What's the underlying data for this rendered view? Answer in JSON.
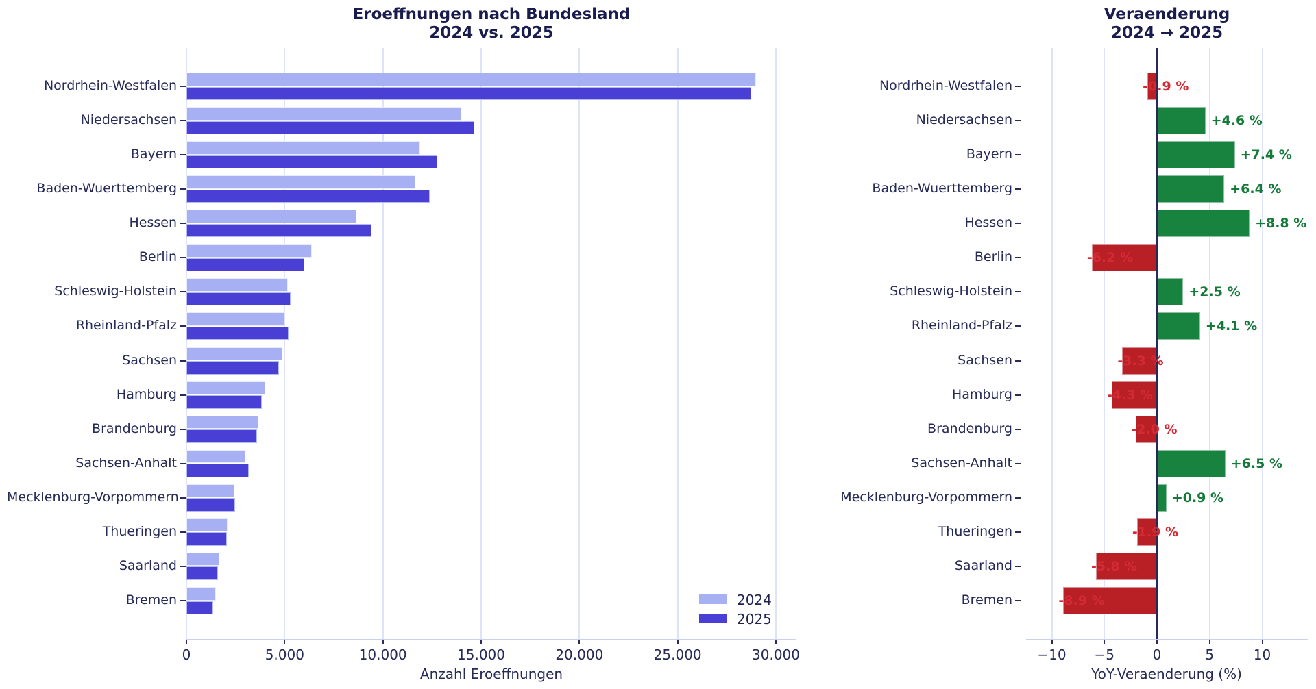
{
  "page": {
    "background": "#ffffff"
  },
  "titles": {
    "left_line1": "Eroeffnungen nach Bundesland",
    "left_line2": "2024 vs. 2025",
    "right_line1": "Veraenderung",
    "right_line2": "2024 → 2025"
  },
  "colors": {
    "bar_2024": "#a6b0f2",
    "bar_2025": "#4a3fd4",
    "bar_positive": "#18833f",
    "bar_negative": "#b92025",
    "label_positive": "#15793a",
    "label_negative": "#d42a33",
    "grid": "#dfe3fa",
    "zero_line": "#262a56",
    "text": "#262a57",
    "title": "#1a1c4e"
  },
  "chart_data": [
    {
      "type": "bar",
      "orientation": "horizontal",
      "title": "Eroeffnungen nach Bundesland\n2024 vs. 2025",
      "xlabel": "Anzahl Eroeffnungen",
      "ylabel": "",
      "grid": true,
      "legend_position": "lower right",
      "xlim": [
        0,
        31000
      ],
      "categories": [
        "Nordrhein-Westfalen",
        "Niedersachsen",
        "Bayern",
        "Baden-Wuerttemberg",
        "Hessen",
        "Berlin",
        "Schleswig-Holstein",
        "Rheinland-Pfalz",
        "Sachsen",
        "Hamburg",
        "Brandenburg",
        "Sachsen-Anhalt",
        "Mecklenburg-Vorpommern",
        "Thueringen",
        "Saarland",
        "Bremen"
      ],
      "series": [
        {
          "name": "2024",
          "color": "#a6b0f2",
          "values": [
            29000,
            14000,
            11900,
            11650,
            8660,
            6400,
            5170,
            5000,
            4880,
            4000,
            3660,
            2990,
            2440,
            2110,
            1690,
            1500
          ]
        },
        {
          "name": "2025",
          "color": "#4a3fd4",
          "values": [
            28740,
            14644,
            12781,
            12396,
            9422,
            6003,
            5299,
            5205,
            4719,
            3828,
            3587,
            3184,
            2462,
            2070,
            1592,
            1367
          ]
        }
      ],
      "xticks": {
        "values": [
          0,
          5000,
          10000,
          15000,
          20000,
          25000,
          30000
        ],
        "labels": [
          "0",
          "5.000",
          "10.000",
          "15.000",
          "20.000",
          "25.000",
          "30.000"
        ]
      }
    },
    {
      "type": "bar",
      "orientation": "horizontal",
      "title": "Veraenderung\n2024 → 2025",
      "xlabel": "YoY-Veraenderung (%)",
      "ylabel": "",
      "grid": true,
      "zero_line": true,
      "xlim": [
        -12.4,
        14.3
      ],
      "categories": [
        "Nordrhein-Westfalen",
        "Niedersachsen",
        "Bayern",
        "Baden-Wuerttemberg",
        "Hessen",
        "Berlin",
        "Schleswig-Holstein",
        "Rheinland-Pfalz",
        "Sachsen",
        "Hamburg",
        "Brandenburg",
        "Sachsen-Anhalt",
        "Mecklenburg-Vorpommern",
        "Thueringen",
        "Saarland",
        "Bremen"
      ],
      "values": [
        -0.9,
        4.6,
        7.4,
        6.4,
        8.8,
        -6.2,
        2.5,
        4.1,
        -3.3,
        -4.3,
        -2.0,
        6.5,
        0.9,
        -1.9,
        -5.8,
        -8.9
      ],
      "bar_labels": [
        "-0.9 %",
        "+4.6 %",
        "+7.4 %",
        "+6.4 %",
        "+8.8 %",
        "-6.2 %",
        "+2.5 %",
        "+4.1 %",
        "-3.3 %",
        "-4.3 %",
        "-2.0 %",
        "+6.5 %",
        "+0.9 %",
        "-1.9 %",
        "-5.8 %",
        "-8.9 %"
      ],
      "xticks": {
        "values": [
          -10,
          -5,
          0,
          5,
          10
        ],
        "labels": [
          "−10",
          "−5",
          "0",
          "5",
          "10"
        ]
      }
    }
  ],
  "legend": {
    "items": [
      {
        "label": "2024",
        "color": "#a6b0f2"
      },
      {
        "label": "2025",
        "color": "#4a3fd4"
      }
    ]
  }
}
